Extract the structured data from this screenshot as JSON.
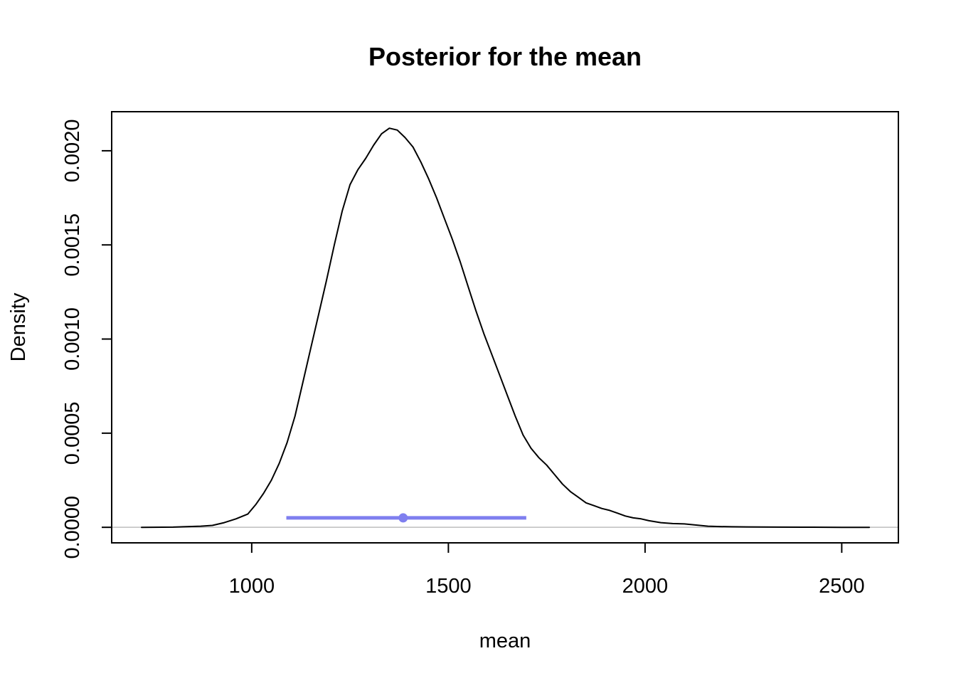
{
  "chart_data": {
    "type": "line",
    "title": "Posterior for the mean",
    "xlabel": "mean",
    "ylabel": "Density",
    "xlim": [
      644,
      2644
    ],
    "ylim": [
      -8.25e-05,
      0.0022075
    ],
    "x_ticks": [
      1000,
      1500,
      2000,
      2500
    ],
    "x_tick_labels": [
      "1000",
      "1500",
      "2000",
      "2500"
    ],
    "y_ticks": [
      0,
      0.0005,
      0.001,
      0.0015,
      0.002
    ],
    "y_tick_labels": [
      "0.0000",
      "0.0005",
      "0.0010",
      "0.0015",
      "0.0020"
    ],
    "grid": false,
    "legend": "none",
    "baseline": 0,
    "series": [
      {
        "x": [
          720,
          800,
          870,
          900,
          930,
          960,
          990,
          1010,
          1030,
          1050,
          1070,
          1090,
          1110,
          1130,
          1150,
          1170,
          1190,
          1210,
          1230,
          1250,
          1270,
          1290,
          1310,
          1330,
          1350,
          1370,
          1390,
          1410,
          1430,
          1450,
          1470,
          1490,
          1510,
          1530,
          1550,
          1570,
          1590,
          1610,
          1630,
          1650,
          1670,
          1690,
          1710,
          1730,
          1750,
          1770,
          1790,
          1810,
          1830,
          1850,
          1870,
          1890,
          1910,
          1930,
          1950,
          1970,
          1990,
          2010,
          2040,
          2070,
          2100,
          2130,
          2160,
          2190,
          2220,
          2260,
          2300,
          2340,
          2400,
          2500,
          2570
        ],
        "y": [
          0.0,
          1e-06,
          6e-06,
          1e-05,
          2.5e-05,
          4.5e-05,
          7e-05,
          0.00012,
          0.00018,
          0.00025,
          0.00034,
          0.00045,
          0.00059,
          0.00077,
          0.00095,
          0.00113,
          0.00131,
          0.0015,
          0.00168,
          0.00182,
          0.0019,
          0.00196,
          0.00203,
          0.00209,
          0.00212,
          0.00211,
          0.00207,
          0.00202,
          0.00194,
          0.00185,
          0.00175,
          0.00164,
          0.00153,
          0.00141,
          0.00128,
          0.00115,
          0.00103,
          0.00092,
          0.00081,
          0.0007,
          0.00059,
          0.00049,
          0.00042,
          0.00037,
          0.00033,
          0.00028,
          0.00023,
          0.00019,
          0.00016,
          0.00013,
          0.000115,
          0.0001,
          9e-05,
          7.5e-05,
          6e-05,
          5e-05,
          4.5e-05,
          3.5e-05,
          2.5e-05,
          2e-05,
          1.8e-05,
          1.2e-05,
          6e-06,
          4e-06,
          3e-06,
          2e-06,
          1.5e-06,
          1e-06,
          5e-07,
          0.0,
          0.0
        ],
        "color": "#000000"
      }
    ],
    "interval": {
      "low": 1088,
      "high": 1698,
      "point": 1385,
      "y": 5e-05,
      "color": "#7f7fef"
    },
    "colors": {
      "baseline": "#bebebe",
      "frame": "#000000"
    }
  }
}
